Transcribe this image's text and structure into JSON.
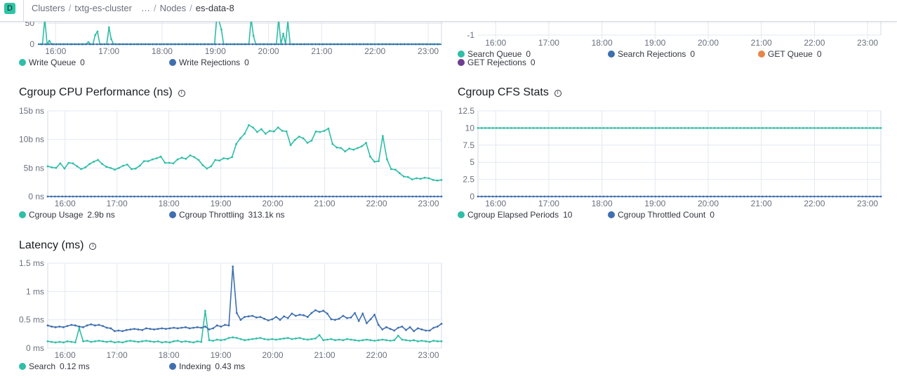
{
  "header": {
    "avatar": "D",
    "breadcrumbs": [
      {
        "label": "Clusters"
      },
      {
        "label": "txtg-es-cluster"
      },
      {
        "label": "…"
      },
      {
        "label": "Nodes"
      },
      {
        "label": "es-data-8"
      }
    ]
  },
  "colors": {
    "teal": "#2fbea7",
    "blue": "#3f6fae",
    "orange": "#e7864a",
    "purple": "#6d3f8f"
  },
  "charts": {
    "write_thread": {
      "x_ticks": [
        "16:00",
        "17:00",
        "18:00",
        "19:00",
        "20:00",
        "21:00",
        "22:00",
        "23:00"
      ],
      "y_ticks": [
        "0",
        "50"
      ],
      "legend": [
        {
          "name": "Write Queue",
          "value": "0",
          "color": "#2fbea7"
        },
        {
          "name": "Write Rejections",
          "value": "0",
          "color": "#3f6fae"
        }
      ]
    },
    "search_thread": {
      "x_ticks": [
        "16:00",
        "17:00",
        "18:00",
        "19:00",
        "20:00",
        "21:00",
        "22:00",
        "23:00"
      ],
      "y_ticks": [
        "-1"
      ],
      "legend": [
        {
          "name": "Search Queue",
          "value": "0",
          "color": "#2fbea7"
        },
        {
          "name": "Search Rejections",
          "value": "0",
          "color": "#3f6fae"
        },
        {
          "name": "GET Queue",
          "value": "0",
          "color": "#e7864a"
        },
        {
          "name": "GET Rejections",
          "value": "0",
          "color": "#6d3f8f"
        }
      ]
    },
    "cgroup_cpu": {
      "title": "Cgroup CPU Performance (ns)",
      "x_ticks": [
        "16:00",
        "17:00",
        "18:00",
        "19:00",
        "20:00",
        "21:00",
        "22:00",
        "23:00"
      ],
      "y_ticks": [
        "15b ns",
        "10b ns",
        "5b ns",
        "0 ns"
      ],
      "legend": [
        {
          "name": "Cgroup Usage",
          "value": "2.9b ns",
          "color": "#2fbea7"
        },
        {
          "name": "Cgroup Throttling",
          "value": "313.1k ns",
          "color": "#3f6fae"
        }
      ]
    },
    "cgroup_cfs": {
      "title": "Cgroup CFS Stats",
      "x_ticks": [
        "16:00",
        "17:00",
        "18:00",
        "19:00",
        "20:00",
        "21:00",
        "22:00",
        "23:00"
      ],
      "y_ticks": [
        "12.5",
        "10",
        "7.5",
        "5",
        "2.5",
        "0"
      ],
      "legend": [
        {
          "name": "Cgroup Elapsed Periods",
          "value": "10",
          "color": "#2fbea7"
        },
        {
          "name": "Cgroup Throttled Count",
          "value": "0",
          "color": "#3f6fae"
        }
      ]
    },
    "latency": {
      "title": "Latency (ms)",
      "x_ticks": [
        "16:00",
        "17:00",
        "18:00",
        "19:00",
        "20:00",
        "21:00",
        "22:00",
        "23:00"
      ],
      "y_ticks": [
        "1.5 ms",
        "1 ms",
        "0.5 ms",
        "0 ms"
      ],
      "legend": [
        {
          "name": "Search",
          "value": "0.12 ms",
          "color": "#2fbea7"
        },
        {
          "name": "Indexing",
          "value": "0.43 ms",
          "color": "#3f6fae"
        }
      ]
    }
  },
  "chart_data": [
    {
      "type": "line",
      "id": "write_thread",
      "x_range": [
        "15:40",
        "23:15"
      ],
      "ylim": [
        0,
        50
      ],
      "series": [
        {
          "name": "Write Queue",
          "shape": "spiky",
          "values": [
            0,
            0,
            0,
            60,
            0,
            8,
            0,
            0,
            0,
            0,
            0,
            0,
            0,
            0,
            0,
            0,
            0,
            0,
            0,
            0,
            0,
            0,
            5,
            0,
            0,
            22,
            30,
            0,
            0,
            0,
            0,
            40,
            12,
            0,
            0,
            0,
            0,
            0,
            0,
            0,
            0,
            0,
            0,
            0,
            0,
            0,
            0,
            0,
            0,
            0,
            0,
            0,
            0,
            0,
            0,
            0,
            0,
            0,
            0,
            0,
            0,
            0,
            0,
            0,
            0,
            0,
            0,
            0,
            0,
            0,
            0,
            0,
            0,
            0,
            0,
            0,
            0,
            0,
            60,
            55,
            35,
            0,
            0,
            0,
            0,
            0,
            0,
            0,
            0,
            0,
            0,
            0,
            0,
            60,
            20,
            0,
            0,
            0,
            0,
            0,
            0,
            0,
            0,
            0,
            0,
            60,
            0,
            25,
            0,
            55,
            0,
            0,
            0,
            0,
            0,
            0,
            0,
            0,
            0,
            0,
            0,
            0,
            0,
            0,
            0,
            0,
            0,
            0,
            0,
            0,
            0,
            0,
            0,
            0,
            0,
            0,
            0,
            0,
            0,
            0,
            0,
            0,
            0,
            0,
            0,
            0,
            0,
            0,
            0,
            0,
            0,
            0,
            0,
            0,
            0,
            0,
            0,
            0,
            0,
            0,
            0,
            0,
            0,
            0,
            0,
            0,
            0,
            0,
            0,
            0,
            0,
            0,
            0,
            0,
            0,
            0,
            0
          ]
        },
        {
          "name": "Write Rejections",
          "values": [
            0
          ]
        }
      ]
    },
    {
      "type": "line",
      "id": "search_thread",
      "x_range": [
        "15:40",
        "23:15"
      ],
      "series": [
        {
          "name": "Search Queue",
          "values": [
            0
          ]
        },
        {
          "name": "Search Rejections",
          "values": [
            0
          ]
        },
        {
          "name": "GET Queue",
          "values": [
            0
          ]
        },
        {
          "name": "GET Rejections",
          "values": [
            0
          ]
        }
      ]
    },
    {
      "type": "line",
      "id": "cgroup_cpu",
      "x_range": [
        "15:40",
        "23:15"
      ],
      "ylim": [
        0,
        15
      ],
      "ylabel_unit": "b ns",
      "series": [
        {
          "name": "Cgroup Usage",
          "values": [
            5.3,
            5.1,
            5.0,
            5.8,
            4.9,
            5.9,
            5.8,
            5.3,
            4.8,
            5.1,
            5.7,
            6.1,
            6.4,
            5.7,
            5.2,
            5.0,
            4.7,
            5.0,
            5.4,
            5.6,
            4.8,
            4.9,
            5.4,
            6.2,
            6.2,
            6.5,
            6.7,
            7.0,
            5.9,
            5.9,
            5.8,
            6.5,
            6.8,
            6.6,
            7.2,
            6.9,
            6.4,
            5.5,
            4.9,
            5.3,
            6.4,
            6.3,
            6.7,
            6.6,
            6.9,
            9.2,
            10.2,
            11.0,
            12.5,
            12.1,
            11.3,
            11.8,
            11.0,
            11.5,
            11.4,
            12.1,
            11.5,
            11.4,
            9.0,
            9.9,
            10.5,
            10.2,
            9.4,
            9.8,
            11.4,
            11.3,
            11.5,
            11.9,
            9.2,
            8.6,
            8.5,
            7.9,
            8.4,
            8.2,
            8.5,
            8.8,
            9.4,
            7.0,
            6.1,
            6.2,
            10.6,
            6.5,
            4.8,
            4.7,
            4.1,
            3.5,
            3.4,
            3.0,
            3.2,
            3.1,
            3.3,
            3.2,
            2.9,
            2.8,
            2.9
          ]
        },
        {
          "name": "Cgroup Throttling",
          "values": [
            0
          ]
        }
      ]
    },
    {
      "type": "line",
      "id": "cgroup_cfs",
      "x_range": [
        "15:40",
        "23:15"
      ],
      "ylim": [
        0,
        12.5
      ],
      "series": [
        {
          "name": "Cgroup Elapsed Periods",
          "values": [
            10
          ]
        },
        {
          "name": "Cgroup Throttled Count",
          "values": [
            0
          ]
        }
      ]
    },
    {
      "type": "line",
      "id": "latency",
      "x_range": [
        "15:40",
        "23:15"
      ],
      "ylim": [
        0,
        1.5
      ],
      "series": [
        {
          "name": "Search",
          "values": [
            0.12,
            0.11,
            0.1,
            0.11,
            0.1,
            0.12,
            0.11,
            0.1,
            0.35,
            0.12,
            0.13,
            0.11,
            0.12,
            0.13,
            0.12,
            0.11,
            0.12,
            0.1,
            0.11,
            0.1,
            0.12,
            0.13,
            0.12,
            0.11,
            0.12,
            0.13,
            0.12,
            0.11,
            0.12,
            0.1,
            0.11,
            0.1,
            0.12,
            0.13,
            0.11,
            0.12,
            0.11,
            0.1,
            0.12,
            0.11,
            0.66,
            0.14,
            0.13,
            0.15,
            0.14,
            0.15,
            0.18,
            0.19,
            0.18,
            0.16,
            0.14,
            0.15,
            0.16,
            0.17,
            0.18,
            0.16,
            0.15,
            0.16,
            0.15,
            0.16,
            0.17,
            0.18,
            0.16,
            0.17,
            0.18,
            0.16,
            0.15,
            0.16,
            0.17,
            0.23,
            0.14,
            0.15,
            0.16,
            0.14,
            0.15,
            0.14,
            0.16,
            0.15,
            0.14,
            0.13,
            0.14,
            0.15,
            0.14,
            0.13,
            0.14,
            0.15,
            0.14,
            0.13,
            0.14,
            0.22,
            0.15,
            0.14,
            0.13,
            0.14,
            0.12,
            0.13,
            0.12,
            0.11,
            0.13,
            0.12,
            0.12
          ]
        },
        {
          "name": "Indexing",
          "values": [
            0.4,
            0.38,
            0.37,
            0.38,
            0.37,
            0.39,
            0.41,
            0.4,
            0.38,
            0.37,
            0.4,
            0.42,
            0.4,
            0.41,
            0.39,
            0.36,
            0.35,
            0.3,
            0.31,
            0.3,
            0.32,
            0.33,
            0.34,
            0.33,
            0.32,
            0.35,
            0.34,
            0.33,
            0.34,
            0.35,
            0.34,
            0.35,
            0.36,
            0.35,
            0.36,
            0.37,
            0.35,
            0.36,
            0.37,
            0.36,
            0.38,
            0.33,
            0.35,
            0.4,
            0.38,
            0.41,
            0.4,
            1.44,
            0.62,
            0.5,
            0.55,
            0.56,
            0.57,
            0.54,
            0.55,
            0.52,
            0.49,
            0.51,
            0.55,
            0.5,
            0.56,
            0.53,
            0.61,
            0.57,
            0.59,
            0.58,
            0.55,
            0.62,
            0.67,
            0.64,
            0.66,
            0.61,
            0.51,
            0.5,
            0.52,
            0.57,
            0.53,
            0.54,
            0.62,
            0.48,
            0.61,
            0.44,
            0.51,
            0.59,
            0.41,
            0.33,
            0.37,
            0.34,
            0.31,
            0.36,
            0.38,
            0.32,
            0.37,
            0.3,
            0.35,
            0.33,
            0.31,
            0.31,
            0.36,
            0.38,
            0.43
          ]
        }
      ]
    }
  ]
}
